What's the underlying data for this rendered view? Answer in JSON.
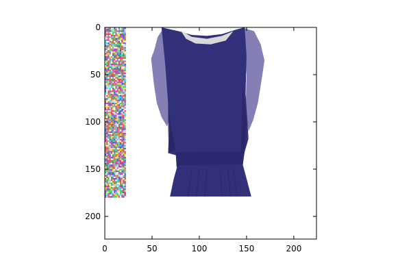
{
  "chart_data": {
    "type": "image",
    "title": "",
    "xlabel": "",
    "ylabel": "",
    "xlim": [
      0,
      224
    ],
    "ylim": [
      224,
      0
    ],
    "y_inverted": true,
    "grid": false,
    "legend": "none",
    "xticks": [
      0,
      50,
      100,
      150,
      200
    ],
    "yticks": [
      0,
      50,
      100,
      150,
      200
    ],
    "xtick_labels": [
      "0",
      "50",
      "100",
      "150",
      "200"
    ],
    "ytick_labels": [
      "0",
      "50",
      "100",
      "150",
      "200"
    ],
    "image_content": {
      "subject": "navy sleeveless chiffon dress on white background",
      "dress_extent": {
        "x": [
          49,
          163
        ],
        "y": [
          0,
          179
        ]
      },
      "waistband_y": 140,
      "noise_strip": {
        "x": [
          0,
          22
        ],
        "y": [
          0,
          179
        ]
      }
    },
    "colors": {
      "background": "#ffffff",
      "dress_body": "#33307a",
      "dress_sheer_sleeve": "#6e6aa8",
      "dress_shadow": "#26235f",
      "waistband": "#2b2870",
      "neckline_lining": "#d9d9dc",
      "axis": "#000000"
    }
  }
}
